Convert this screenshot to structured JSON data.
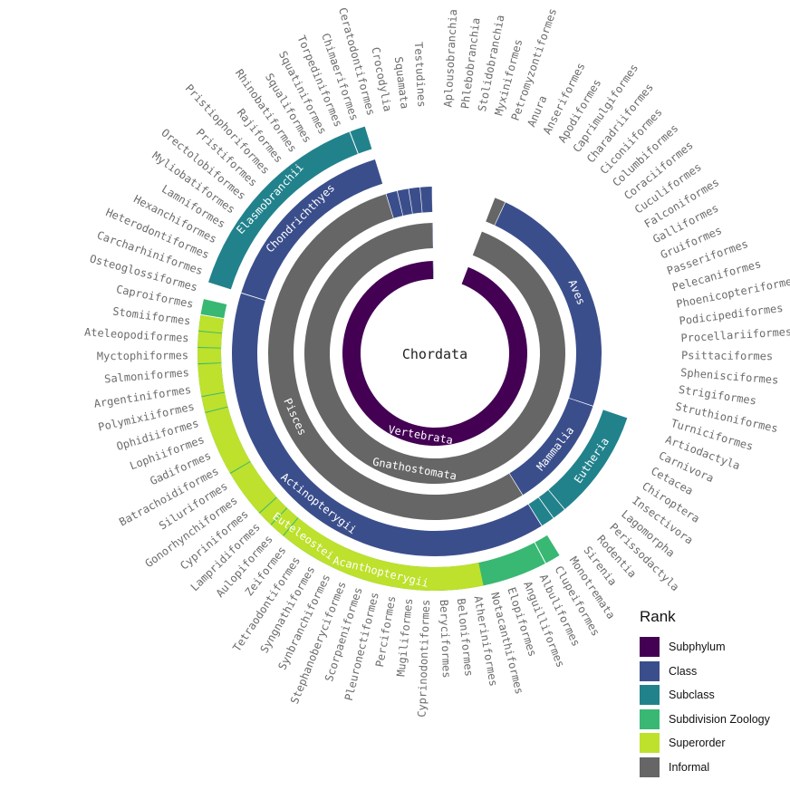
{
  "center_label": "Chordata",
  "colors": {
    "Subphylum": "#440154",
    "Class": "#3b4e8c",
    "Subclass": "#21828c",
    "Subdivision Zoology": "#38b873",
    "Superorder": "#bde12c",
    "Informal": "#666666"
  },
  "legend": {
    "title": "Rank",
    "items": [
      {
        "label": "Subphylum",
        "rank": "Subphylum"
      },
      {
        "label": "Class",
        "rank": "Class"
      },
      {
        "label": "Subclass",
        "rank": "Subclass"
      },
      {
        "label": "Subdivision Zoology",
        "rank": "Subdivision Zoology"
      },
      {
        "label": "Superorder",
        "rank": "Superorder"
      },
      {
        "label": "Informal",
        "rank": "Informal"
      }
    ]
  },
  "tree": {
    "name": "Chordata",
    "children": [
      {
        "name": "Aplousobranchia",
        "leaf": true
      },
      {
        "name": "Phlebobranchia",
        "leaf": true
      },
      {
        "name": "Stolidobranchia",
        "leaf": true
      },
      {
        "name": "Myxiniformes",
        "leaf": true
      },
      {
        "name": "Petromyzontiformes",
        "leaf": true
      },
      {
        "name": "Vertebrata",
        "rank": "Subphylum",
        "children": [
          {
            "name": "Gnathostomata",
            "rank": "Informal",
            "children": [
              {
                "name": "",
                "rank": "Informal",
                "children": [
                  {
                    "name": "Anura",
                    "leaf": true
                  }
                ]
              },
              {
                "name": "Aves",
                "rank": "Class",
                "children": [
                  {
                    "name": "Anseriformes",
                    "leaf": true
                  },
                  {
                    "name": "Apodiformes",
                    "leaf": true
                  },
                  {
                    "name": "Caprimulgiformes",
                    "leaf": true
                  },
                  {
                    "name": "Charadriiformes",
                    "leaf": true
                  },
                  {
                    "name": "Ciconiiformes",
                    "leaf": true
                  },
                  {
                    "name": "Columbiformes",
                    "leaf": true
                  },
                  {
                    "name": "Coraciiformes",
                    "leaf": true
                  },
                  {
                    "name": "Cuculiformes",
                    "leaf": true
                  },
                  {
                    "name": "Falconiformes",
                    "leaf": true
                  },
                  {
                    "name": "Galliformes",
                    "leaf": true
                  },
                  {
                    "name": "Gruiformes",
                    "leaf": true
                  },
                  {
                    "name": "Passeriformes",
                    "leaf": true
                  },
                  {
                    "name": "Pelecaniformes",
                    "leaf": true
                  },
                  {
                    "name": "Phoenicopteriformes",
                    "leaf": true
                  },
                  {
                    "name": "Podicipediformes",
                    "leaf": true
                  },
                  {
                    "name": "Procellariiformes",
                    "leaf": true
                  },
                  {
                    "name": "Psittaciformes",
                    "leaf": true
                  },
                  {
                    "name": "Sphenisciformes",
                    "leaf": true
                  },
                  {
                    "name": "Strigiformes",
                    "leaf": true
                  },
                  {
                    "name": "Struthioniformes",
                    "leaf": true
                  },
                  {
                    "name": "Turniciformes",
                    "leaf": true
                  }
                ]
              },
              {
                "name": "Mammalia",
                "rank": "Class",
                "children": [
                  {
                    "name": "Eutheria",
                    "rank": "Subclass",
                    "children": [
                      {
                        "name": "Artiodactyla",
                        "leaf": true
                      },
                      {
                        "name": "Carnivora",
                        "leaf": true
                      },
                      {
                        "name": "Cetacea",
                        "leaf": true
                      },
                      {
                        "name": "Chiroptera",
                        "leaf": true
                      },
                      {
                        "name": "Insectivora",
                        "leaf": true
                      },
                      {
                        "name": "Lagomorpha",
                        "leaf": true
                      },
                      {
                        "name": "Perissodactyla",
                        "leaf": true
                      },
                      {
                        "name": "Rodentia",
                        "leaf": true
                      }
                    ]
                  },
                  {
                    "name": "",
                    "rank": "Subclass",
                    "children": [
                      {
                        "name": "Sirenia",
                        "leaf": true
                      }
                    ]
                  },
                  {
                    "name": "",
                    "rank": "Subclass",
                    "children": [
                      {
                        "name": "Monotremata",
                        "leaf": true
                      }
                    ]
                  }
                ]
              },
              {
                "name": "Pisces",
                "rank": "Informal",
                "children": [
                  {
                    "name": "Actinopterygii",
                    "rank": "Class",
                    "children": [
                      {
                        "name": "",
                        "rank": "Subdivision Zoology",
                        "children": [
                          {
                            "name": "Clupeiformes",
                            "leaf": true
                          }
                        ]
                      },
                      {
                        "name": "Euteleostei",
                        "rank": "Subdivision Zoology",
                        "children": [
                          {
                            "name": "Albuliformes",
                            "leaf": true
                          },
                          {
                            "name": "Anguilliformes",
                            "leaf": true
                          },
                          {
                            "name": "Elopiformes",
                            "leaf": true
                          },
                          {
                            "name": "Notacanthiformes",
                            "leaf": true
                          },
                          {
                            "name": "Acanthopterygii",
                            "rank": "Superorder",
                            "children": [
                              {
                                "name": "Atheriniformes",
                                "leaf": true
                              },
                              {
                                "name": "Beloniformes",
                                "leaf": true
                              },
                              {
                                "name": "Beryciformes",
                                "leaf": true
                              },
                              {
                                "name": "Cyprinodontiformes",
                                "leaf": true
                              },
                              {
                                "name": "Mugiliformes",
                                "leaf": true
                              },
                              {
                                "name": "Perciformes",
                                "leaf": true
                              },
                              {
                                "name": "Pleuronectiformes",
                                "leaf": true
                              },
                              {
                                "name": "Scorpaeniformes",
                                "leaf": true
                              },
                              {
                                "name": "Stephanoberyciformes",
                                "leaf": true
                              },
                              {
                                "name": "Synbranchiformes",
                                "leaf": true
                              },
                              {
                                "name": "Syngnathiformes",
                                "leaf": true
                              },
                              {
                                "name": "Tetraodontiformes",
                                "leaf": true
                              },
                              {
                                "name": "Zeiformes",
                                "leaf": true
                              }
                            ]
                          },
                          {
                            "name": "",
                            "rank": "Superorder",
                            "children": [
                              {
                                "name": "Aulopiformes",
                                "leaf": true
                              }
                            ]
                          },
                          {
                            "name": "",
                            "rank": "Superorder",
                            "children": [
                              {
                                "name": "Lampridiformes",
                                "leaf": true
                              }
                            ]
                          },
                          {
                            "name": "",
                            "rank": "Superorder",
                            "children": [
                              {
                                "name": "Cypriniformes",
                                "leaf": true
                              },
                              {
                                "name": "Gonorhynchiformes",
                                "leaf": true
                              },
                              {
                                "name": "Siluriformes",
                                "leaf": true
                              }
                            ]
                          },
                          {
                            "name": "",
                            "rank": "Superorder",
                            "children": [
                              {
                                "name": "Batrachoidiformes",
                                "leaf": true
                              },
                              {
                                "name": "Gadiformes",
                                "leaf": true
                              },
                              {
                                "name": "Lophiiformes",
                                "leaf": true
                              },
                              {
                                "name": "Ophidiiformes",
                                "leaf": true
                              }
                            ]
                          },
                          {
                            "name": "",
                            "rank": "Superorder",
                            "children": [
                              {
                                "name": "Polymixiiformes",
                                "leaf": true
                              }
                            ]
                          },
                          {
                            "name": "",
                            "rank": "Superorder",
                            "children": [
                              {
                                "name": "Argentiniformes",
                                "leaf": true
                              },
                              {
                                "name": "Salmoniformes",
                                "leaf": true
                              }
                            ]
                          },
                          {
                            "name": "",
                            "rank": "Superorder",
                            "children": [
                              {
                                "name": "Myctophiformes",
                                "leaf": true
                              }
                            ]
                          },
                          {
                            "name": "",
                            "rank": "Superorder",
                            "children": [
                              {
                                "name": "Ateleopodiformes",
                                "leaf": true
                              }
                            ]
                          },
                          {
                            "name": "",
                            "rank": "Superorder",
                            "children": [
                              {
                                "name": "Stomiiformes",
                                "leaf": true
                              }
                            ]
                          }
                        ]
                      },
                      {
                        "name": "",
                        "rank": "Subdivision Zoology",
                        "children": [
                          {
                            "name": "Caproiformes",
                            "leaf": true
                          }
                        ]
                      },
                      {
                        "name": "Osteoglossiformes",
                        "leaf": true
                      }
                    ]
                  },
                  {
                    "name": "Chondrichthyes",
                    "rank": "Class",
                    "children": [
                      {
                        "name": "Elasmobranchii",
                        "rank": "Subclass",
                        "children": [
                          {
                            "name": "Carcharhiniformes",
                            "leaf": true
                          },
                          {
                            "name": "Heterodontiformes",
                            "leaf": true
                          },
                          {
                            "name": "Hexanchiformes",
                            "leaf": true
                          },
                          {
                            "name": "Lamniformes",
                            "leaf": true
                          },
                          {
                            "name": "Myliobatiformes",
                            "leaf": true
                          },
                          {
                            "name": "Orectolobiformes",
                            "leaf": true
                          },
                          {
                            "name": "Pristiformes",
                            "leaf": true
                          },
                          {
                            "name": "Pristiophoriformes",
                            "leaf": true
                          },
                          {
                            "name": "Rajiformes",
                            "leaf": true
                          },
                          {
                            "name": "Rhinobatiformes",
                            "leaf": true
                          },
                          {
                            "name": "Squaliformes",
                            "leaf": true
                          },
                          {
                            "name": "Squatiniformes",
                            "leaf": true
                          },
                          {
                            "name": "Torpediniformes",
                            "leaf": true
                          }
                        ]
                      },
                      {
                        "name": "",
                        "rank": "Subclass",
                        "children": [
                          {
                            "name": "Chimaeriformes",
                            "leaf": true
                          }
                        ]
                      }
                    ]
                  }
                ]
              },
              {
                "name": "",
                "rank": "Class",
                "children": [
                  {
                    "name": "Ceratodontiformes",
                    "leaf": true
                  }
                ]
              },
              {
                "name": "",
                "rank": "Class",
                "children": [
                  {
                    "name": "Crocodylia",
                    "leaf": true
                  }
                ]
              },
              {
                "name": "",
                "rank": "Class",
                "children": [
                  {
                    "name": "Squamata",
                    "leaf": true
                  }
                ]
              },
              {
                "name": "",
                "rank": "Class",
                "children": [
                  {
                    "name": "Testudines",
                    "leaf": true
                  }
                ]
              }
            ]
          }
        ]
      },
      {
        "name": "",
        "rank": "Class",
        "children": [
          {
            "name": "",
            "rank": "Class",
            "children": [
              {
                "name": "",
                "rank": "Class",
                "children": []
              }
            ]
          }
        ]
      }
    ]
  }
}
